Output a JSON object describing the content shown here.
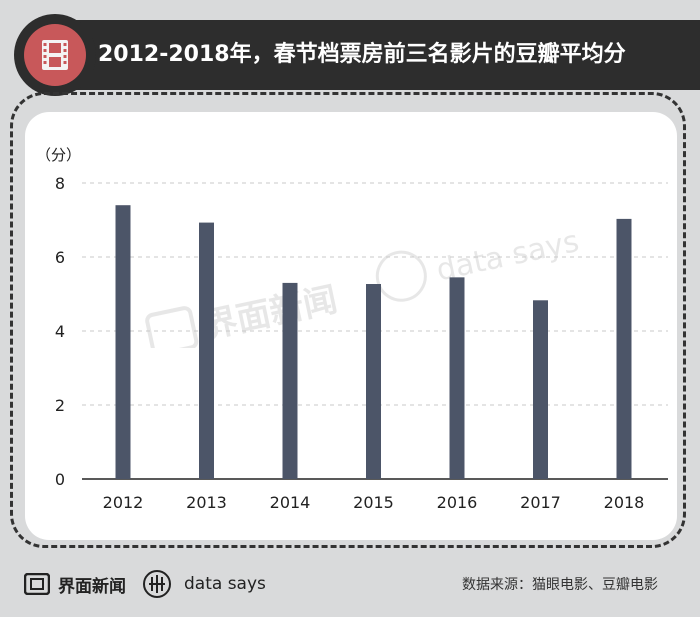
{
  "header": {
    "title": "2012-2018年，春节档票房前三名影片的豆瓣平均分",
    "icon": "film-strip-icon"
  },
  "chart_data": {
    "type": "bar",
    "title": "2012-2018年，春节档票房前三名影片的豆瓣平均分",
    "ylabel": "（分）",
    "xlabel": "",
    "categories": [
      "2012",
      "2013",
      "2014",
      "2015",
      "2016",
      "2017",
      "2018"
    ],
    "values": [
      7.4,
      6.93,
      5.3,
      5.27,
      5.45,
      4.83,
      7.03
    ],
    "ylim": [
      0,
      8
    ],
    "yticks": [
      "0",
      "2",
      "4",
      "6",
      "8"
    ],
    "grid": true,
    "bar_color": "#4c5568"
  },
  "watermark": {
    "brand": "界面新闻",
    "tag": "data says"
  },
  "footer": {
    "brand": "界面新闻",
    "tag": "data says",
    "source": "数据来源：猫眼电影、豆瓣电影"
  },
  "colors": {
    "background": "#d9dadb",
    "header": "#2d2d2d",
    "badge": "#c8585a",
    "bar": "#4c5568"
  }
}
